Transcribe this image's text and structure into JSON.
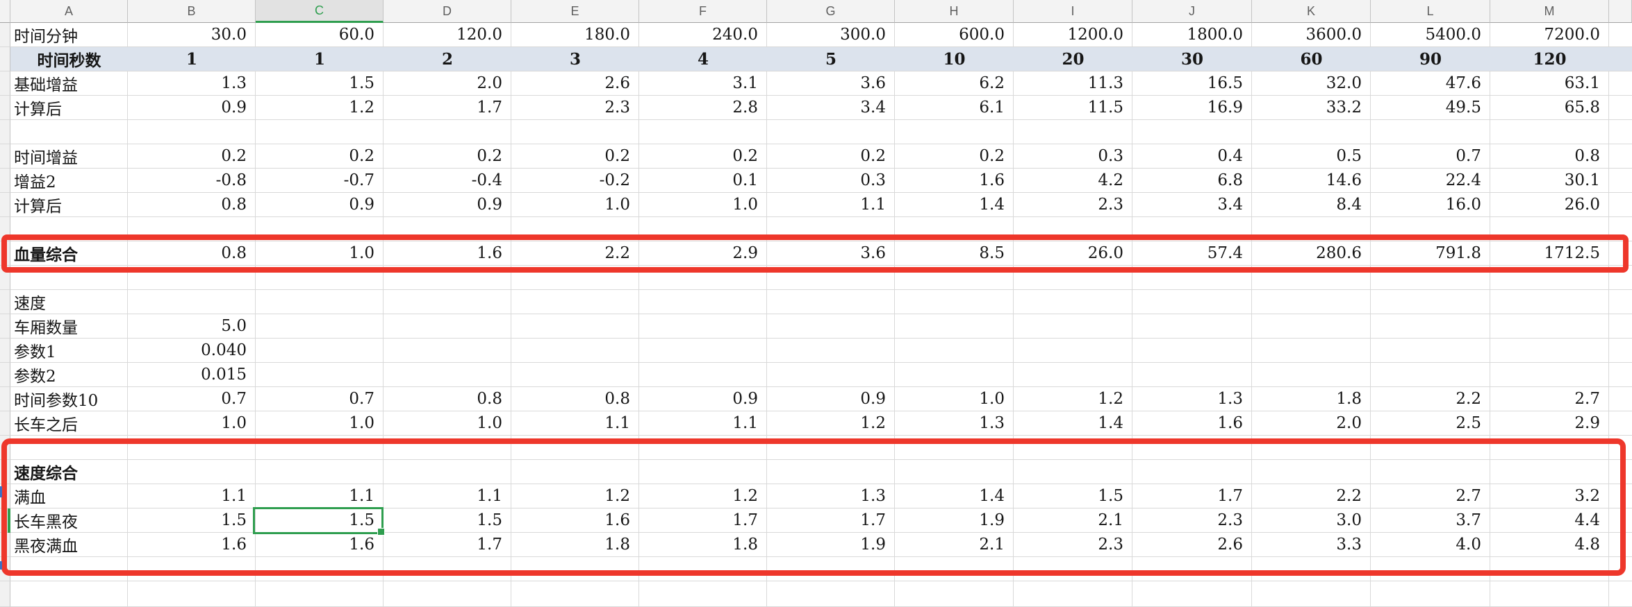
{
  "app": {
    "type": "spreadsheet-grid"
  },
  "colors": {
    "header_bg": "#f3f3f3",
    "header_selected_bg": "#e2e2e2",
    "header_text": "#5f5f5f",
    "header_separator": "#c3c3c3",
    "header_bottom_edge": "#a3a3a3",
    "gridline": "#d9d9d9",
    "strip_bg": "#f1f1f1",
    "band_bg": "#dce3ed",
    "selection_green": "#2f9e4f",
    "annotation_red": "#ee372b",
    "row_marker_blue": "#3b6fc4"
  },
  "sheet": {
    "column_headers": [
      "A",
      "B",
      "C",
      "D",
      "E",
      "F",
      "G",
      "H",
      "I",
      "J",
      "K",
      "L",
      "M"
    ],
    "selected_column": "C",
    "selected_cell": {
      "column": "C",
      "row": 21,
      "row_label": "长车黑夜",
      "value": "1.5"
    },
    "rows": [
      {
        "row": 1,
        "label": "时间分钟",
        "values": [
          "30.0",
          "60.0",
          "120.0",
          "180.0",
          "240.0",
          "300.0",
          "600.0",
          "1200.0",
          "1800.0",
          "3600.0",
          "5400.0",
          "7200.0"
        ]
      },
      {
        "row": 2,
        "label": "时间秒数",
        "band": true,
        "bold": true,
        "centered": true,
        "values": [
          "1",
          "1",
          "2",
          "3",
          "4",
          "5",
          "10",
          "20",
          "30",
          "60",
          "90",
          "120"
        ]
      },
      {
        "row": 3,
        "label": "基础增益",
        "values": [
          "1.3",
          "1.5",
          "2.0",
          "2.6",
          "3.1",
          "3.6",
          "6.2",
          "11.3",
          "16.5",
          "32.0",
          "47.6",
          "63.1"
        ]
      },
      {
        "row": 4,
        "label": "计算后",
        "values": [
          "0.9",
          "1.2",
          "1.7",
          "2.3",
          "2.8",
          "3.4",
          "6.1",
          "11.5",
          "16.9",
          "33.2",
          "49.5",
          "65.8"
        ]
      },
      {
        "row": 5,
        "label": "",
        "values": []
      },
      {
        "row": 6,
        "label": "时间增益",
        "values": [
          "0.2",
          "0.2",
          "0.2",
          "0.2",
          "0.2",
          "0.2",
          "0.2",
          "0.3",
          "0.4",
          "0.5",
          "0.7",
          "0.8"
        ]
      },
      {
        "row": 7,
        "label": "增益2",
        "values": [
          "-0.8",
          "-0.7",
          "-0.4",
          "-0.2",
          "0.1",
          "0.3",
          "1.6",
          "4.2",
          "6.8",
          "14.6",
          "22.4",
          "30.1"
        ]
      },
      {
        "row": 8,
        "label": "计算后",
        "values": [
          "0.8",
          "0.9",
          "0.9",
          "1.0",
          "1.0",
          "1.1",
          "1.4",
          "2.3",
          "3.4",
          "8.4",
          "16.0",
          "26.0"
        ]
      },
      {
        "row": 9,
        "label": "",
        "values": []
      },
      {
        "row": 10,
        "label": "血量综合",
        "bold_label": true,
        "values": [
          "0.8",
          "1.0",
          "1.6",
          "2.2",
          "2.9",
          "3.6",
          "8.5",
          "26.0",
          "57.4",
          "280.6",
          "791.8",
          "1712.5"
        ]
      },
      {
        "row": 11,
        "label": "",
        "values": []
      },
      {
        "row": 12,
        "label": "速度",
        "values": []
      },
      {
        "row": 13,
        "label": "车厢数量",
        "values": [
          "5.0",
          "",
          "",
          "",
          "",
          "",
          "",
          "",
          "",
          "",
          "",
          ""
        ]
      },
      {
        "row": 14,
        "label": "参数1",
        "values": [
          "0.040",
          "",
          "",
          "",
          "",
          "",
          "",
          "",
          "",
          "",
          "",
          ""
        ]
      },
      {
        "row": 15,
        "label": "参数2",
        "values": [
          "0.015",
          "",
          "",
          "",
          "",
          "",
          "",
          "",
          "",
          "",
          "",
          ""
        ]
      },
      {
        "row": 16,
        "label": "时间参数10",
        "values": [
          "0.7",
          "0.7",
          "0.8",
          "0.8",
          "0.9",
          "0.9",
          "1.0",
          "1.2",
          "1.3",
          "1.8",
          "2.2",
          "2.7"
        ]
      },
      {
        "row": 17,
        "label": "长车之后",
        "values": [
          "1.0",
          "1.0",
          "1.0",
          "1.1",
          "1.1",
          "1.2",
          "1.3",
          "1.4",
          "1.6",
          "2.0",
          "2.5",
          "2.9"
        ]
      },
      {
        "row": 18,
        "label": "",
        "values": []
      },
      {
        "row": 19,
        "label": "速度综合",
        "bold_label": true,
        "values": []
      },
      {
        "row": 20,
        "label": "满血",
        "values": [
          "1.1",
          "1.1",
          "1.1",
          "1.2",
          "1.2",
          "1.3",
          "1.4",
          "1.5",
          "1.7",
          "2.2",
          "2.7",
          "3.2"
        ]
      },
      {
        "row": 21,
        "label": "长车黑夜",
        "values": [
          "1.5",
          "1.5",
          "1.5",
          "1.6",
          "1.7",
          "1.7",
          "1.9",
          "2.1",
          "2.3",
          "3.0",
          "3.7",
          "4.4"
        ]
      },
      {
        "row": 22,
        "label": "黑夜满血",
        "values": [
          "1.6",
          "1.6",
          "1.7",
          "1.8",
          "1.8",
          "1.9",
          "2.1",
          "2.3",
          "2.6",
          "3.3",
          "4.0",
          "4.8"
        ]
      },
      {
        "row": 23,
        "label": "",
        "values": []
      },
      {
        "row": 24,
        "label": "",
        "values": []
      }
    ]
  },
  "annotations": {
    "boxes": [
      {
        "name": "blood-summary-highlight",
        "around_row_label": "血量综合"
      },
      {
        "name": "speed-summary-highlight",
        "around_row_label": "速度综合"
      }
    ]
  }
}
